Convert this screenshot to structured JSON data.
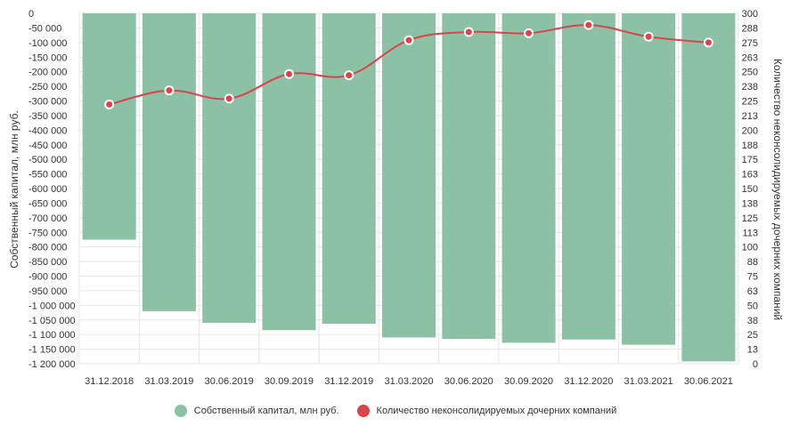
{
  "chart_data": {
    "type": "bar",
    "categories": [
      "31.12.2018",
      "31.03.2019",
      "30.06.2019",
      "30.09.2019",
      "31.12.2019",
      "31.03.2020",
      "30.06.2020",
      "30.09.2020",
      "31.12.2020",
      "31.03.2021",
      "30.06.2021"
    ],
    "series": [
      {
        "name": "Собственный капитал, млн руб.",
        "type": "bar",
        "axis": "left",
        "color": "#8dc1a5",
        "values": [
          -775000,
          -1020000,
          -1060000,
          -1085000,
          -1063000,
          -1110000,
          -1115000,
          -1128000,
          -1117000,
          -1135000,
          -1192000
        ]
      },
      {
        "name": "Количество неконсолидируемых дочерних компаний",
        "type": "line",
        "axis": "right",
        "color": "#d9434b",
        "values": [
          222,
          234,
          227,
          248,
          247,
          277,
          284,
          283,
          290,
          280,
          275
        ]
      }
    ],
    "ylabel": "Собственный капитал, млн руб.",
    "y2label": "Количество неконсолидируемых дочерних компаний",
    "ylim": [
      -1200000,
      0
    ],
    "y2lim": [
      0,
      300
    ],
    "yticks": [
      "0",
      "-50 000",
      "-100 000",
      "-150 000",
      "-200 000",
      "-250 000",
      "-300 000",
      "-350 000",
      "-400 000",
      "-450 000",
      "-500 000",
      "-550 000",
      "-600 000",
      "-650 000",
      "-700 000",
      "-750 000",
      "-800 000",
      "-850 000",
      "-900 000",
      "-950 000",
      "-1 000 000",
      "-1 050 000",
      "-1 100 000",
      "-1 150 000",
      "-1 200 000"
    ],
    "y2ticks": [
      "300",
      "288",
      "275",
      "263",
      "250",
      "238",
      "225",
      "213",
      "200",
      "188",
      "175",
      "163",
      "150",
      "138",
      "125",
      "113",
      "100",
      "88",
      "75",
      "63",
      "50",
      "38",
      "25",
      "13",
      "0"
    ],
    "grid": true,
    "legend_position": "bottom"
  }
}
